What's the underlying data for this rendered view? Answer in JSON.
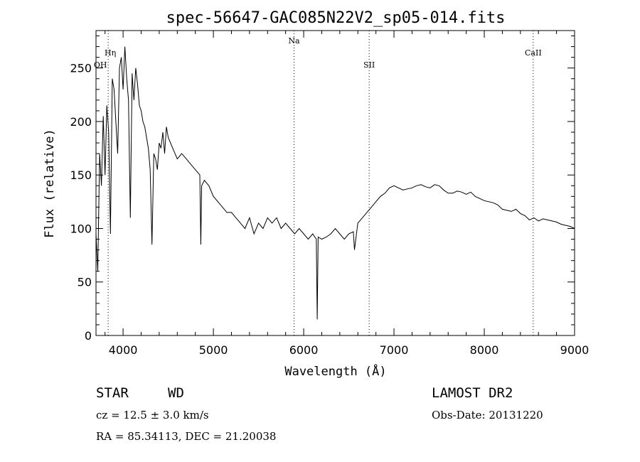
{
  "chart_data": {
    "type": "line",
    "title": "spec-56647-GAC085N22V2_sp05-014.fits",
    "xlabel": "Wavelength (Å)",
    "ylabel": "Flux (relative)",
    "xlim": [
      3700,
      9000
    ],
    "ylim": [
      0,
      285
    ],
    "x_ticks": [
      4000,
      5000,
      6000,
      7000,
      8000,
      9000
    ],
    "y_ticks": [
      0,
      50,
      100,
      150,
      200,
      250
    ],
    "grid": false,
    "line_markers": [
      {
        "label": "OH",
        "x": 3835
      },
      {
        "label": "Hη",
        "x": 3835
      },
      {
        "label": "Na",
        "x": 5893
      },
      {
        "label": "SII",
        "x": 6725
      },
      {
        "label": "CaII",
        "x": 8542
      }
    ],
    "series": [
      {
        "x": [
          3700,
          3720,
          3740,
          3760,
          3780,
          3800,
          3820,
          3840,
          3860,
          3880,
          3900,
          3920,
          3940,
          3960,
          3980,
          4000,
          4020,
          4040,
          4060,
          4080,
          4100,
          4120,
          4140,
          4160,
          4180,
          4200,
          4220,
          4240,
          4260,
          4280,
          4300,
          4320,
          4340,
          4360,
          4380,
          4400,
          4420,
          4440,
          4460,
          4480,
          4500,
          4550,
          4600,
          4650,
          4700,
          4750,
          4800,
          4850,
          4861,
          4870,
          4900,
          4950,
          5000,
          5050,
          5100,
          5150,
          5200,
          5250,
          5300,
          5350,
          5400,
          5450,
          5500,
          5550,
          5600,
          5650,
          5700,
          5750,
          5800,
          5850,
          5900,
          5950,
          6000,
          6050,
          6100,
          6140,
          6150,
          6160,
          6200,
          6250,
          6300,
          6350,
          6400,
          6450,
          6500,
          6550,
          6563,
          6580,
          6600,
          6650,
          6700,
          6750,
          6800,
          6850,
          6900,
          6950,
          7000,
          7050,
          7100,
          7150,
          7200,
          7250,
          7300,
          7350,
          7400,
          7450,
          7500,
          7550,
          7600,
          7650,
          7700,
          7750,
          7800,
          7850,
          7900,
          7950,
          8000,
          8050,
          8100,
          8150,
          8200,
          8250,
          8300,
          8350,
          8400,
          8450,
          8500,
          8550,
          8600,
          8650,
          8700,
          8750,
          8800,
          8850,
          8900,
          8950,
          9000
        ],
        "y": [
          95,
          60,
          170,
          140,
          205,
          150,
          215,
          190,
          95,
          240,
          230,
          200,
          170,
          250,
          260,
          230,
          270,
          240,
          220,
          110,
          245,
          220,
          250,
          235,
          215,
          210,
          200,
          195,
          185,
          175,
          155,
          85,
          170,
          165,
          155,
          180,
          175,
          190,
          170,
          195,
          185,
          175,
          165,
          170,
          165,
          160,
          155,
          150,
          85,
          140,
          145,
          140,
          130,
          125,
          120,
          115,
          115,
          110,
          105,
          100,
          110,
          95,
          105,
          100,
          110,
          105,
          110,
          100,
          105,
          100,
          95,
          100,
          95,
          90,
          95,
          90,
          15,
          92,
          90,
          92,
          95,
          100,
          95,
          90,
          95,
          97,
          80,
          92,
          105,
          110,
          115,
          120,
          125,
          130,
          133,
          138,
          140,
          138,
          136,
          137,
          138,
          140,
          141,
          139,
          138,
          141,
          140,
          136,
          133,
          133,
          135,
          134,
          132,
          134,
          130,
          128,
          126,
          125,
          124,
          122,
          118,
          117,
          116,
          118,
          114,
          112,
          108,
          110,
          107,
          109,
          108,
          107,
          106,
          104,
          103,
          102,
          100
        ]
      }
    ]
  },
  "info": {
    "object_class": "STAR",
    "subclass": "WD",
    "survey": "LAMOST DR2",
    "cz": "cz = 12.5 ± 3.0 km/s",
    "obs_date": "Obs-Date: 20131220",
    "coords": "RA =  85.34113, DEC =  21.20038"
  }
}
